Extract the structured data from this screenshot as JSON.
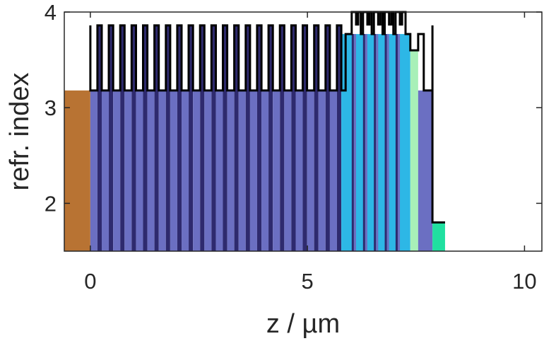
{
  "chart_data": {
    "type": "area",
    "title": "",
    "xlabel": "z / µm",
    "ylabel": "refr. index",
    "xlim": [
      -0.6,
      10.4
    ],
    "ylim": [
      1.5,
      4.0
    ],
    "xticks": [
      0,
      5,
      10
    ],
    "xtick_labels": [
      "0",
      "5",
      "10"
    ],
    "yticks": [
      2,
      3,
      4
    ],
    "ytick_labels": [
      "2",
      "3",
      "4"
    ],
    "grid": false,
    "legend": "none",
    "colors": {
      "substrate": "#b87333",
      "dbr_low": "#6b6fc2",
      "dbr_high": "#2e2a6e",
      "cavity": "#2db7e6",
      "spacer": "#a8f0b8",
      "oxide": "#20e0a0",
      "profile": "#000000"
    },
    "regions": [
      {
        "layer": "substrate",
        "x_start": -0.6,
        "x_end": 0.0,
        "n": 3.18
      },
      {
        "layer": "bottom DBR",
        "x_start": 0.0,
        "x_end": 5.78,
        "n_low": 3.18,
        "n_high": 3.86,
        "periods": 22
      },
      {
        "layer": "cavity",
        "x_start": 5.78,
        "x_end": 7.37,
        "n": 3.77
      },
      {
        "layer": "spacer",
        "x_start": 7.37,
        "x_end": 7.55,
        "n": 3.6
      },
      {
        "layer": "top DBR",
        "x_start": 7.55,
        "x_end": 7.88,
        "n": 3.18
      },
      {
        "layer": "oxide",
        "x_start": 7.88,
        "x_end": 8.17,
        "n": 1.8
      }
    ],
    "profile": {
      "description": "refractive index step profile n(z)",
      "dbr_low": 3.18,
      "dbr_high": 3.86,
      "cavity": 3.77,
      "active_peaks": 4.0,
      "active_wells": 3.77,
      "spacer_dip": 3.6,
      "end_drop": 1.8
    }
  }
}
